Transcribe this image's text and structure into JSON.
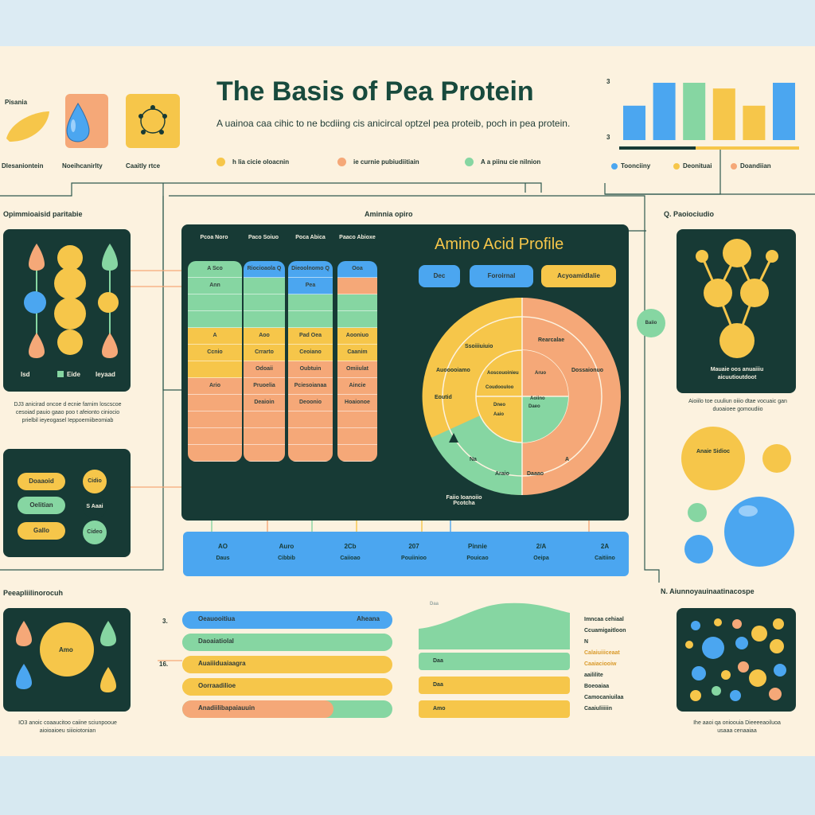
{
  "header": {
    "title": "The Basis of Pea Protein",
    "subtitle": "A uainoa caa cihic to ne bcdiing cis anicircal optzel pea proteib, poch in pea protein."
  },
  "top_icons": [
    {
      "label": "Pisania",
      "caption": "Dlesaniontein",
      "color": "#f6c64a",
      "icon": "pea-pod-icon"
    },
    {
      "label": "",
      "caption": "Noeihcanirlty",
      "color": "#f5a878",
      "icon": "water-drop-icon"
    },
    {
      "label": "",
      "caption": "Caaitly rtce",
      "color": "#f6c64a",
      "icon": "molecule-ring-icon"
    }
  ],
  "top_legend": [
    {
      "label": "h lia cicie oloacnin",
      "color": "#f6c64a"
    },
    {
      "label": "ie curnie pubiudiitiain",
      "color": "#f5a878"
    },
    {
      "label": "A a piinu cie nilnion",
      "color": "#86d6a2"
    }
  ],
  "mini_chart": {
    "tick_top": "3",
    "tick_bottom": "3",
    "legend": [
      {
        "label": "Toonciiny",
        "color": "#4ba6f0"
      },
      {
        "label": "Deonituai",
        "color": "#f6c64a"
      },
      {
        "label": "Doandiian",
        "color": "#f5a878"
      }
    ]
  },
  "chart_data": {
    "type": "bar",
    "categories": [
      "",
      "",
      "",
      "",
      "",
      ""
    ],
    "values": [
      0.6,
      1.0,
      1.0,
      0.9,
      0.6,
      1.0
    ],
    "colors": [
      "#4ba6f0",
      "#4ba6f0",
      "#86d6a2",
      "#f6c64a",
      "#f6c64a",
      "#4ba6f0"
    ],
    "ylim": [
      0,
      1
    ],
    "title": "",
    "xlabel": "",
    "ylabel": ""
  },
  "left_section": {
    "title": "Opimmioaisid paritabie",
    "legend": [
      {
        "label": "Isd",
        "color": "#f6c64a"
      },
      {
        "label": "Eide",
        "color": "#86d6a2"
      },
      {
        "label": "Ieyaad",
        "color": "#f5a878"
      }
    ],
    "caption": "DJ3 anicirad oncoe d ecnie farnim loscscoe cesoiad pauio gaao poo t afeionto ciniocio prielbil ieyeogasel Ieppoemiibeomiab",
    "pills": [
      {
        "label": "Doaaoid",
        "color": "#f6c64a"
      },
      {
        "label": "Oelitian",
        "color": "#86d6a2"
      },
      {
        "label": "Gallo",
        "color": "#f6c64a"
      }
    ],
    "dots": [
      {
        "label": "Cidio",
        "color": "#f6c64a"
      },
      {
        "label": "S Aaai",
        "color": "#173a35"
      },
      {
        "label": "Cideo",
        "color": "#86d6a2"
      }
    ]
  },
  "center": {
    "section_label": "Aminnia opiro",
    "panel_title": "Amino Acid Profile",
    "tags": [
      {
        "label": "Dec",
        "color": "#4ba6f0"
      },
      {
        "label": "Foroirnal",
        "color": "#4ba6f0"
      },
      {
        "label": "Acyoamidlalie",
        "color": "#f6c64a"
      }
    ],
    "table": {
      "headers": [
        "Pcoa Noro",
        "Paco Soiuo",
        "Poca Abica",
        "Paaco Abioxe"
      ],
      "col0": [
        "A Sco",
        "Ann",
        "",
        "",
        "A",
        "Ccnio",
        "",
        "Ario",
        ""
      ],
      "col1": [
        "Riocioaola Q",
        "",
        "",
        "",
        "Aoo",
        "Crrarto",
        "Odoaii",
        "Pruoelia",
        "Deaioin"
      ],
      "col2": [
        "Dieoolnomo Q",
        "Pea",
        "",
        "",
        "Pad Oea",
        "Ceoiano",
        "Oubtuin",
        "Pciesoianaa",
        "Deoonio"
      ],
      "col3": [
        "Ooa",
        "",
        "",
        "",
        "Aooniuo",
        "Caanim",
        "Omiiulat",
        "Aincie",
        "Hoaionoe"
      ]
    },
    "donut": {
      "outer_labels": [
        "Ssoiiiuiuio",
        "Rearcalae",
        "Auooooiamo",
        "Dossaionuo",
        "Eoutid",
        "Na",
        "A"
      ],
      "inner_labels": [
        "Aoscouoinieu",
        "Aruo",
        "Coudoouloo",
        "Aoiino",
        "Dneo",
        "Daeo",
        "Aaio"
      ],
      "bottom_labels": [
        "Araio",
        "Daaao"
      ],
      "pointer_label": "Faiio Ioanoiio Pcotcha"
    },
    "bottom_band": [
      {
        "top": "AO",
        "bottom": "Daus"
      },
      {
        "top": "Auro",
        "bottom": "Cibbib"
      },
      {
        "top": "2Cb",
        "bottom": "Caiioao"
      },
      {
        "top": "207",
        "bottom": "Pouiinioo"
      },
      {
        "top": "Pinnie",
        "bottom": "Pouicao"
      },
      {
        "top": "2/A",
        "bottom": "Oeipa"
      },
      {
        "top": "2A",
        "bottom": "Caitiino"
      }
    ]
  },
  "right_section": {
    "title": "Q. Paoiociudio",
    "node_label": "Baiio",
    "caption1": "Mauaie oos anuaiiiu aicuutioutdoot",
    "caption2": "Aioiilo toe cuuliun oiiio dtae vocuaic gan duoaioee gomoudiio",
    "bubble_label": "Anaie Sidioc",
    "bottom_title": "N. Aiunnoyauinaatinacospe",
    "bottom_caption": "Ihe aaoi qa onioouia Dieeeeaoiluoa usaaa cenaaiaa"
  },
  "bottom_left": {
    "title": "Peeapliilinorocuh",
    "center_label": "Amo",
    "caption": "IO3 anoic coaaucitoo caiine sciunpooue aioioaioeu siiioiotonian"
  },
  "bottom_bars": {
    "marker_a": "3.",
    "marker_b": "16.",
    "rows": [
      {
        "label": "Oeauooitiua",
        "right": "Aheana",
        "color": "#4ba6f0",
        "split": 1.0,
        "color2": "#4ba6f0"
      },
      {
        "label": "Daoaiatiolal",
        "right": "",
        "color": "#86d6a2",
        "split": 1.0,
        "color2": "#86d6a2"
      },
      {
        "label": "Auaiiiduaiaagra",
        "right": "",
        "color": "#f6c64a",
        "split": 0.55,
        "color2": "#f6c64a"
      },
      {
        "label": "Oorraadilioe",
        "right": "",
        "color": "#f6c64a",
        "split": 1.0,
        "color2": "#f6c64a"
      },
      {
        "label": "Anadiilibapaiauuin",
        "right": "",
        "color": "#f5a878",
        "split": 0.72,
        "color2": "#86d6a2"
      }
    ]
  },
  "bottom_chart": {
    "axis_label": "Daa",
    "bars": [
      {
        "label": "Daa",
        "color": "#86d6a2"
      },
      {
        "label": "Daa",
        "color": "#f6c64a"
      },
      {
        "label": "Amo",
        "color": "#f6c64a"
      }
    ],
    "notes": [
      "Imncaa cehiaal",
      "Ccuamigaitloon",
      "N",
      "Calaiuiiiceaat",
      "Caaiaciooiw",
      "aaililite",
      "Boeoaiaa",
      "Camocaniuilaa",
      "Caaiuliiiiin"
    ]
  }
}
